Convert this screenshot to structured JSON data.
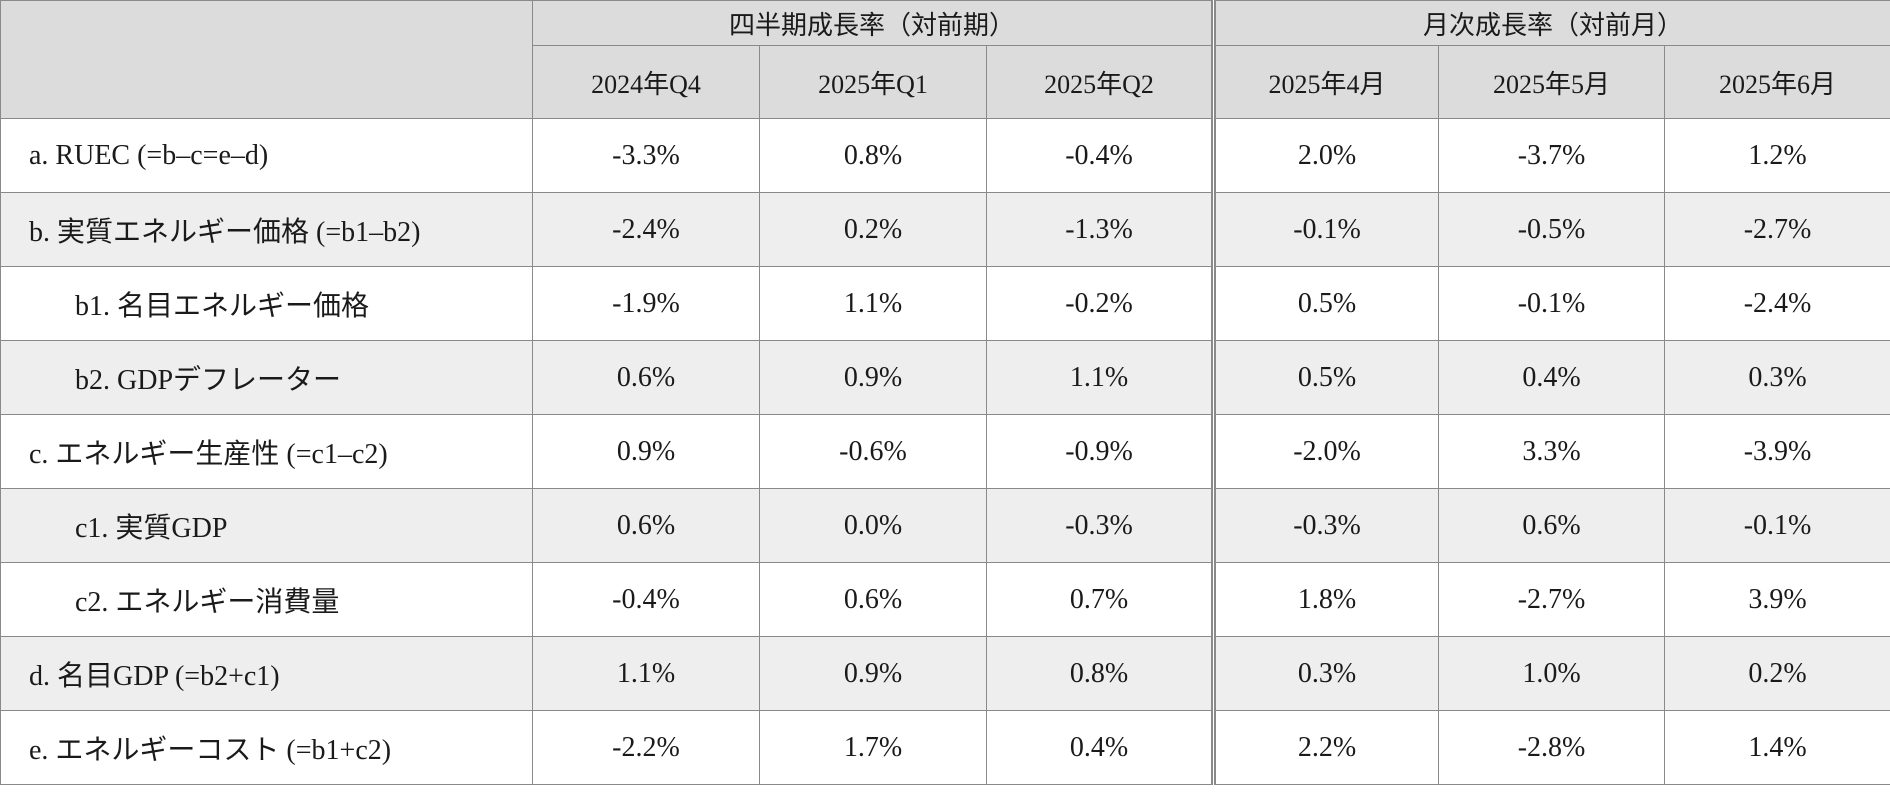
{
  "header": {
    "group_quarterly": "四半期成長率（対前期）",
    "group_monthly": "月次成長率（対前月）",
    "columns": [
      "2024年Q4",
      "2025年Q1",
      "2025年Q2",
      "2025年4月",
      "2025年5月",
      "2025年6月"
    ]
  },
  "rows": [
    {
      "label": "a. RUEC (=b–c=e–d)",
      "values": [
        "-3.3%",
        "0.8%",
        "-0.4%",
        "2.0%",
        "-3.7%",
        "1.2%"
      ]
    },
    {
      "label": "b. 実質エネルギー価格 (=b1–b2)",
      "values": [
        "-2.4%",
        "0.2%",
        "-1.3%",
        "-0.1%",
        "-0.5%",
        "-2.7%"
      ]
    },
    {
      "label": "b1. 名目エネルギー価格",
      "values": [
        "-1.9%",
        "1.1%",
        "-0.2%",
        "0.5%",
        "-0.1%",
        "-2.4%"
      ]
    },
    {
      "label": "b2. GDPデフレーター",
      "values": [
        "0.6%",
        "0.9%",
        "1.1%",
        "0.5%",
        "0.4%",
        "0.3%"
      ]
    },
    {
      "label": "c. エネルギー生産性 (=c1–c2)",
      "values": [
        "0.9%",
        "-0.6%",
        "-0.9%",
        "-2.0%",
        "3.3%",
        "-3.9%"
      ]
    },
    {
      "label": "c1. 実質GDP",
      "values": [
        "0.6%",
        "0.0%",
        "-0.3%",
        "-0.3%",
        "0.6%",
        "-0.1%"
      ]
    },
    {
      "label": "c2. エネルギー消費量",
      "values": [
        "-0.4%",
        "0.6%",
        "0.7%",
        "1.8%",
        "-2.7%",
        "3.9%"
      ]
    },
    {
      "label": "d. 名目GDP (=b2+c1)",
      "values": [
        "1.1%",
        "0.9%",
        "0.8%",
        "0.3%",
        "1.0%",
        "0.2%"
      ]
    },
    {
      "label": "e. エネルギーコスト (=b1+c2)",
      "values": [
        "-2.2%",
        "1.7%",
        "0.4%",
        "2.2%",
        "-2.8%",
        "1.4%"
      ]
    }
  ]
}
